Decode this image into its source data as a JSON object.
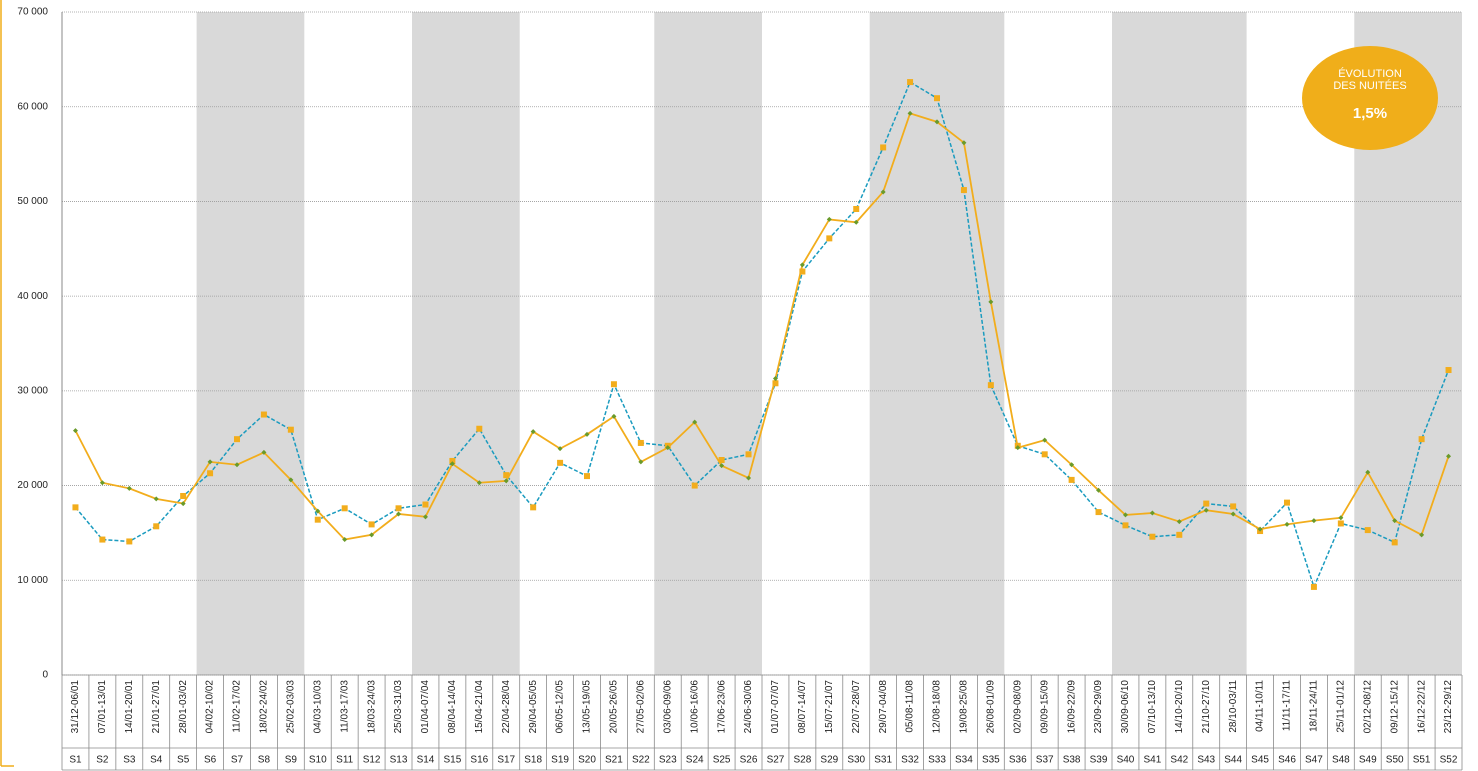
{
  "chart_data": {
    "type": "line",
    "categories": [
      "S1",
      "S2",
      "S3",
      "S4",
      "S5",
      "S6",
      "S7",
      "S8",
      "S9",
      "S10",
      "S11",
      "S12",
      "S13",
      "S14",
      "S15",
      "S16",
      "S17",
      "S18",
      "S19",
      "S20",
      "S21",
      "S22",
      "S23",
      "S24",
      "S25",
      "S26",
      "S27",
      "S28",
      "S29",
      "S30",
      "S31",
      "S32",
      "S33",
      "S34",
      "S35",
      "S36",
      "S37",
      "S38",
      "S39",
      "S40",
      "S41",
      "S42",
      "S43",
      "S44",
      "S45",
      "S46",
      "S47",
      "S48",
      "S49",
      "S50",
      "S51",
      "S52"
    ],
    "date_ranges": [
      "31/12-06/01",
      "07/01-13/01",
      "14/01-20/01",
      "21/01-27/01",
      "28/01-03/02",
      "04/02-10/02",
      "11/02-17/02",
      "18/02-24/02",
      "25/02-03/03",
      "04/03-10/03",
      "11/03-17/03",
      "18/03-24/03",
      "25/03-31/03",
      "01/04-07/04",
      "08/04-14/04",
      "15/04-21/04",
      "22/04-28/04",
      "29/04-05/05",
      "06/05-12/05",
      "13/05-19/05",
      "20/05-26/05",
      "27/05-02/06",
      "03/06-09/06",
      "10/06-16/06",
      "17/06-23/06",
      "24/06-30/06",
      "01/07-07/07",
      "08/07-14/07",
      "15/07-21/07",
      "22/07-28/07",
      "29/07-04/08",
      "05/08-11/08",
      "12/08-18/08",
      "19/08-25/08",
      "26/08-01/09",
      "02/09-08/09",
      "09/09-15/09",
      "16/09-22/09",
      "23/09-29/09",
      "30/09-06/10",
      "07/10-13/10",
      "14/10-20/10",
      "21/10-27/10",
      "28/10-03/11",
      "04/11-10/11",
      "11/11-17/11",
      "18/11-24/11",
      "25/11-01/12",
      "02/12-08/12",
      "09/12-15/12",
      "16/12-22/12",
      "23/12-29/12"
    ],
    "series": [
      {
        "color": "#1a9bbf",
        "marker_color": "#f2ad1c",
        "dashed": true,
        "marker": "square",
        "values": [
          17700,
          14300,
          14100,
          15700,
          18900,
          21300,
          24900,
          27500,
          25900,
          16400,
          17600,
          15900,
          17600,
          18000,
          22600,
          26000,
          21100,
          17700,
          22400,
          21000,
          30700,
          24500,
          24200,
          20000,
          22700,
          23300,
          30800,
          42600,
          46100,
          49200,
          55700,
          62600,
          60900,
          51200,
          30600,
          24200,
          23300,
          20600,
          17200,
          15800,
          14600,
          14800,
          18100,
          17800,
          15200,
          18200,
          9300,
          16000,
          15300,
          14000,
          24900,
          32200
        ]
      },
      {
        "color": "#f2ad1c",
        "marker_color": "#6a9a2a",
        "dashed": false,
        "marker": "diamond",
        "values": [
          25800,
          20300,
          19700,
          18600,
          18100,
          22500,
          22200,
          23500,
          20600,
          17300,
          14300,
          14800,
          17000,
          16700,
          22300,
          20300,
          20500,
          25700,
          23900,
          25400,
          27300,
          22500,
          24000,
          26700,
          22100,
          20800,
          31300,
          43300,
          48100,
          47800,
          51000,
          59300,
          58400,
          56200,
          39400,
          24000,
          24800,
          22200,
          19500,
          16900,
          17100,
          16200,
          17400,
          17000,
          15400,
          15900,
          16300,
          16600,
          21400,
          16300,
          14800,
          23100
        ]
      }
    ],
    "ylim": [
      0,
      70000
    ],
    "yticks": [
      {
        "value": 0,
        "label": "0"
      },
      {
        "value": 10000,
        "label": "10 000"
      },
      {
        "value": 20000,
        "label": "20 000"
      },
      {
        "value": 30000,
        "label": "30 000"
      },
      {
        "value": 40000,
        "label": "40 000"
      },
      {
        "value": 50000,
        "label": "50 000"
      },
      {
        "value": 60000,
        "label": "60 000"
      },
      {
        "value": 70000,
        "label": "70 000"
      }
    ],
    "grid": true,
    "badge": {
      "lines": [
        "ÉVOLUTION",
        "DES NUITÉES"
      ],
      "value": "1,5%",
      "color": "#f0ae1a"
    }
  }
}
